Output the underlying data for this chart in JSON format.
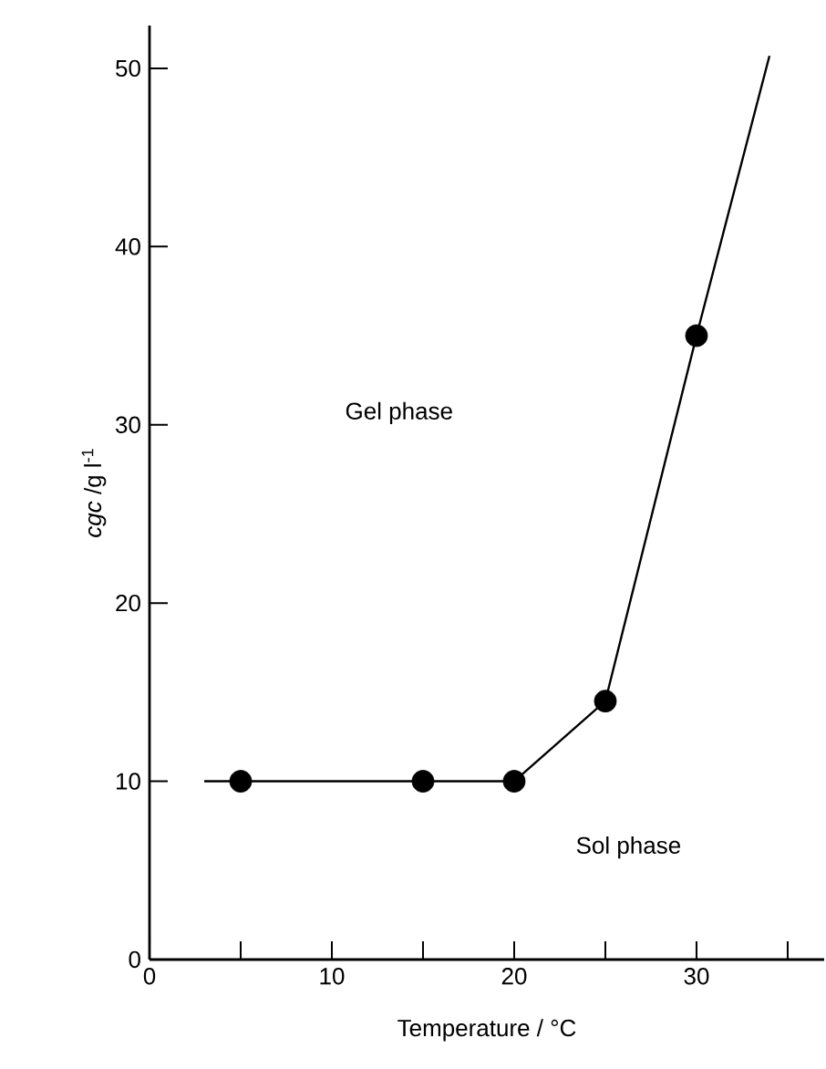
{
  "chart_data": {
    "type": "line",
    "xlabel": "Temperature / °C",
    "ylabel": "*cgc* /g l$^{-1}$",
    "xlim": [
      0,
      37
    ],
    "ylim": [
      0,
      52.4
    ],
    "xticks": [
      0,
      {
        "value": 5,
        "label": null
      },
      10,
      {
        "value": 15,
        "label": null
      },
      20,
      {
        "value": 25,
        "label": null
      },
      30,
      {
        "value": 35,
        "label": null
      }
    ],
    "yticks": [
      0,
      10,
      20,
      30,
      40,
      50
    ],
    "series": [
      {
        "color": "#000000",
        "marker": "none",
        "x": [
          3,
          5,
          15,
          20,
          25,
          30,
          34
        ],
        "values": [
          10,
          10,
          10,
          10,
          14.5,
          35,
          50.7
        ]
      },
      {
        "type": "scatter",
        "color": "#000000",
        "marker": "circle",
        "x": [
          5,
          15,
          20,
          25,
          30
        ],
        "values": [
          10,
          10,
          10,
          14.5,
          35
        ]
      }
    ],
    "annotations": [
      "Gel phase",
      "Sol phase"
    ],
    "line_style": "solid"
  }
}
